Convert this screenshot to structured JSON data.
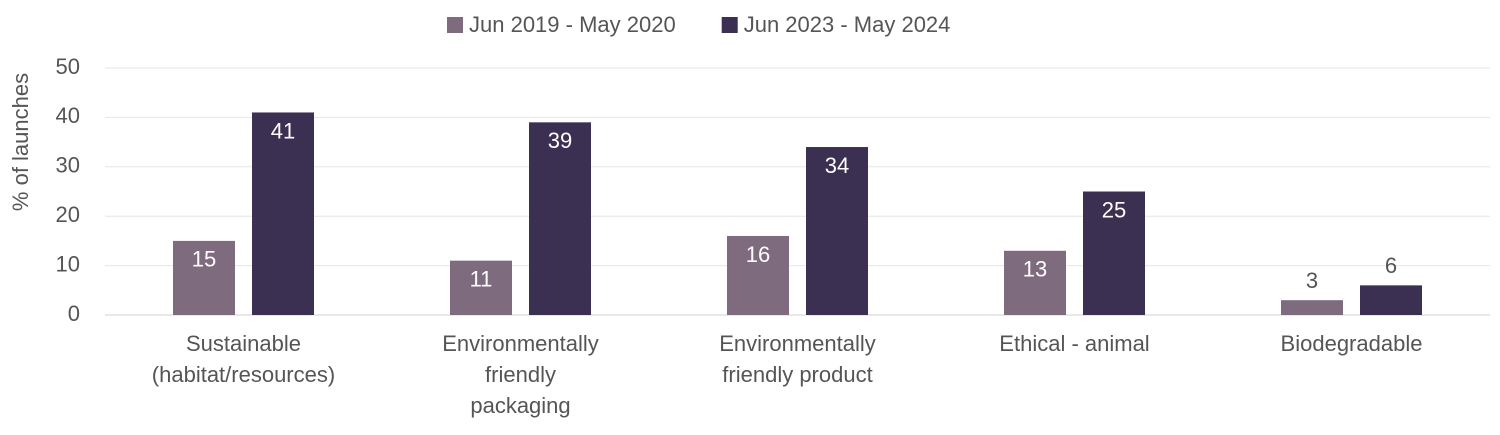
{
  "chart_data": {
    "type": "bar",
    "y_label": "% of launches",
    "categories": [
      "Sustainable\n(habitat/resources)",
      "Environmentally\nfriendly\npackaging",
      "Environmentally\nfriendly product",
      "Ethical - animal",
      "Biodegradable"
    ],
    "series": [
      {
        "name": "Jun 2019 - May 2020",
        "color": "#7f6b7e",
        "values": [
          15,
          11,
          16,
          13,
          3
        ]
      },
      {
        "name": "Jun 2023 - May 2024",
        "color": "#3c3052",
        "values": [
          41,
          39,
          34,
          25,
          6
        ]
      }
    ],
    "ylim": [
      0,
      50
    ],
    "yticks": [
      0,
      10,
      20,
      30,
      40,
      50
    ],
    "grid": true,
    "legend": "top"
  }
}
